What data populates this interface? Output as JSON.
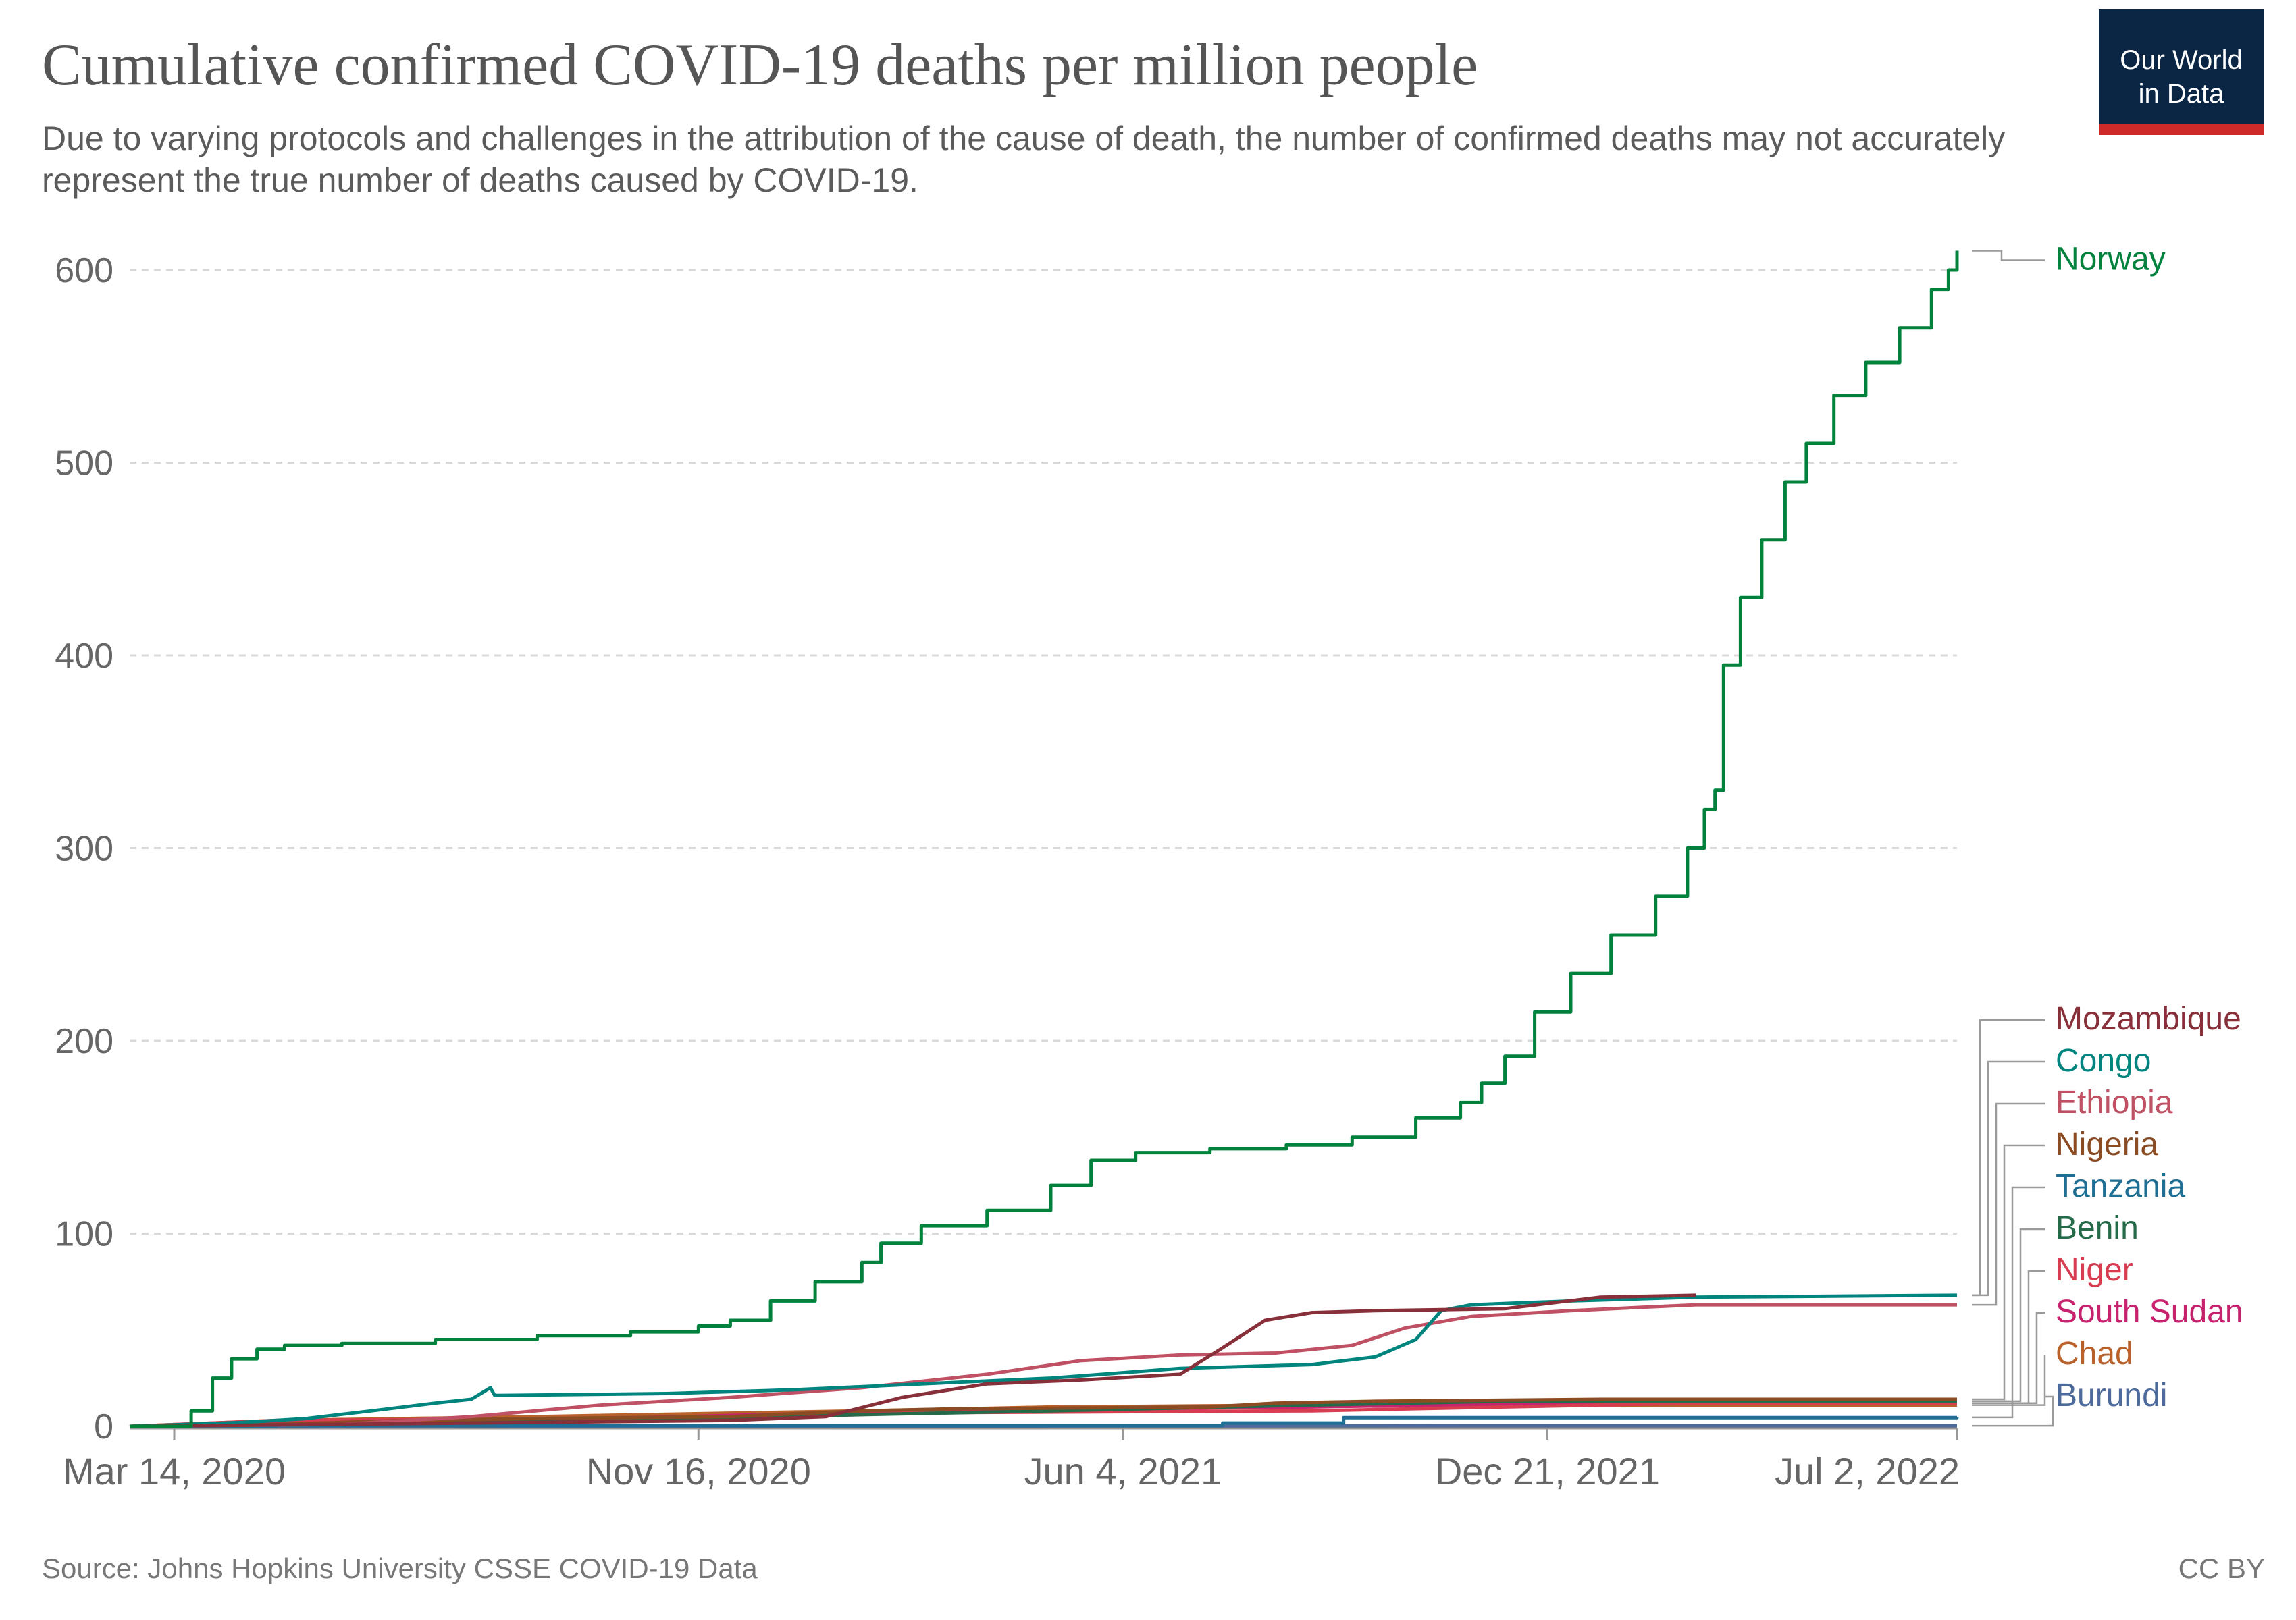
{
  "header": {
    "title": "Cumulative confirmed COVID-19 deaths per million people",
    "subtitle": "Due to varying protocols and challenges in the attribution of the cause of death, the number of confirmed deaths may not accurately represent the true number of deaths caused by COVID-19."
  },
  "logo": {
    "text": "Our World in Data",
    "bg_color": "#0b2545",
    "accent_color": "#cf2a2a"
  },
  "footer": {
    "source": "Source: Johns Hopkins University CSSE COVID-19 Data",
    "license": "CC BY"
  },
  "chart_data": {
    "type": "line",
    "title": "Cumulative confirmed COVID-19 deaths per million people",
    "xlabel": "",
    "ylabel": "",
    "x_type": "date",
    "x_range": [
      "2020-02-22",
      "2022-07-02"
    ],
    "ylim": [
      0,
      600
    ],
    "yticks": [
      0,
      100,
      200,
      300,
      400,
      500,
      600
    ],
    "xticks": [
      {
        "date": "2020-03-14",
        "label": "Mar 14, 2020"
      },
      {
        "date": "2020-11-16",
        "label": "Nov 16, 2020"
      },
      {
        "date": "2021-06-04",
        "label": "Jun 4, 2021"
      },
      {
        "date": "2021-12-21",
        "label": "Dec 21, 2021"
      },
      {
        "date": "2022-07-02",
        "label": "Jul 2, 2022"
      }
    ],
    "grid": "horizontal dashed",
    "legend": "right, labels at line ends",
    "series": [
      {
        "name": "Norway",
        "color": "#00813c",
        "step": true,
        "points": [
          [
            "2020-02-22",
            0
          ],
          [
            "2020-03-10",
            0
          ],
          [
            "2020-03-22",
            8
          ],
          [
            "2020-04-01",
            25
          ],
          [
            "2020-04-10",
            35
          ],
          [
            "2020-04-22",
            40
          ],
          [
            "2020-05-05",
            42
          ],
          [
            "2020-06-01",
            43
          ],
          [
            "2020-07-15",
            45
          ],
          [
            "2020-09-01",
            47
          ],
          [
            "2020-10-15",
            49
          ],
          [
            "2020-11-16",
            52
          ],
          [
            "2020-12-01",
            55
          ],
          [
            "2020-12-20",
            65
          ],
          [
            "2021-01-10",
            75
          ],
          [
            "2021-02-01",
            85
          ],
          [
            "2021-02-10",
            95
          ],
          [
            "2021-03-01",
            104
          ],
          [
            "2021-04-01",
            112
          ],
          [
            "2021-05-01",
            125
          ],
          [
            "2021-05-20",
            138
          ],
          [
            "2021-06-10",
            142
          ],
          [
            "2021-07-15",
            144
          ],
          [
            "2021-08-20",
            146
          ],
          [
            "2021-09-20",
            150
          ],
          [
            "2021-10-20",
            160
          ],
          [
            "2021-11-10",
            168
          ],
          [
            "2021-11-20",
            178
          ],
          [
            "2021-12-01",
            192
          ],
          [
            "2021-12-15",
            215
          ],
          [
            "2022-01-01",
            235
          ],
          [
            "2022-01-20",
            255
          ],
          [
            "2022-02-10",
            275
          ],
          [
            "2022-02-25",
            300
          ],
          [
            "2022-03-05",
            320
          ],
          [
            "2022-03-10",
            330
          ],
          [
            "2022-03-14",
            395
          ],
          [
            "2022-03-22",
            430
          ],
          [
            "2022-04-01",
            460
          ],
          [
            "2022-04-12",
            490
          ],
          [
            "2022-04-22",
            510
          ],
          [
            "2022-05-05",
            535
          ],
          [
            "2022-05-20",
            552
          ],
          [
            "2022-06-05",
            570
          ],
          [
            "2022-06-20",
            590
          ],
          [
            "2022-06-28",
            600
          ],
          [
            "2022-07-02",
            610
          ]
        ]
      },
      {
        "name": "Mozambique",
        "color": "#883039",
        "step": false,
        "points": [
          [
            "2020-02-22",
            0
          ],
          [
            "2020-12-01",
            3
          ],
          [
            "2021-01-15",
            5
          ],
          [
            "2021-02-20",
            15
          ],
          [
            "2021-04-01",
            22
          ],
          [
            "2021-05-15",
            24
          ],
          [
            "2021-07-01",
            27
          ],
          [
            "2021-07-20",
            40
          ],
          [
            "2021-08-10",
            55
          ],
          [
            "2021-09-01",
            59
          ],
          [
            "2021-10-01",
            60
          ],
          [
            "2021-12-01",
            61
          ],
          [
            "2022-01-15",
            67
          ],
          [
            "2022-03-01",
            68
          ]
        ]
      },
      {
        "name": "Congo",
        "color": "#00847e",
        "step": false,
        "points": [
          [
            "2020-02-22",
            0
          ],
          [
            "2020-04-15",
            2
          ],
          [
            "2020-05-15",
            4
          ],
          [
            "2020-06-15",
            8
          ],
          [
            "2020-07-15",
            12
          ],
          [
            "2020-08-01",
            14
          ],
          [
            "2020-08-10",
            20
          ],
          [
            "2020-08-12",
            16
          ],
          [
            "2020-11-01",
            17
          ],
          [
            "2021-01-01",
            19
          ],
          [
            "2021-03-01",
            22
          ],
          [
            "2021-05-01",
            25
          ],
          [
            "2021-07-01",
            30
          ],
          [
            "2021-09-01",
            32
          ],
          [
            "2021-10-01",
            36
          ],
          [
            "2021-10-20",
            45
          ],
          [
            "2021-11-01",
            60
          ],
          [
            "2021-11-15",
            63
          ],
          [
            "2022-01-01",
            65
          ],
          [
            "2022-03-01",
            67
          ],
          [
            "2022-07-02",
            68
          ]
        ]
      },
      {
        "name": "Ethiopia",
        "color": "#c05063",
        "step": false,
        "points": [
          [
            "2020-02-22",
            0
          ],
          [
            "2020-06-01",
            1
          ],
          [
            "2020-08-01",
            5
          ],
          [
            "2020-10-01",
            11
          ],
          [
            "2020-12-01",
            15
          ],
          [
            "2021-02-01",
            20
          ],
          [
            "2021-04-01",
            27
          ],
          [
            "2021-05-15",
            34
          ],
          [
            "2021-07-01",
            37
          ],
          [
            "2021-08-15",
            38
          ],
          [
            "2021-09-20",
            42
          ],
          [
            "2021-10-15",
            51
          ],
          [
            "2021-11-15",
            57
          ],
          [
            "2022-01-01",
            60
          ],
          [
            "2022-03-01",
            63
          ],
          [
            "2022-07-02",
            63
          ]
        ]
      },
      {
        "name": "Nigeria",
        "color": "#8b4c23",
        "step": false,
        "points": [
          [
            "2020-02-22",
            0
          ],
          [
            "2020-05-01",
            1
          ],
          [
            "2020-07-01",
            3
          ],
          [
            "2020-09-01",
            4
          ],
          [
            "2020-12-01",
            5
          ],
          [
            "2021-02-01",
            8
          ],
          [
            "2021-03-15",
            9
          ],
          [
            "2021-07-15",
            10
          ],
          [
            "2021-08-15",
            12
          ],
          [
            "2021-10-01",
            13
          ],
          [
            "2022-01-15",
            14
          ],
          [
            "2022-07-02",
            14
          ]
        ]
      },
      {
        "name": "Tanzania",
        "color": "#1f6f94",
        "step": true,
        "points": [
          [
            "2020-02-22",
            0
          ],
          [
            "2020-05-01",
            0.4
          ],
          [
            "2021-07-20",
            0.4
          ],
          [
            "2021-07-21",
            1.7
          ],
          [
            "2021-09-15",
            1.7
          ],
          [
            "2021-09-16",
            4.5
          ],
          [
            "2022-07-02",
            4.6
          ]
        ]
      },
      {
        "name": "Benin",
        "color": "#256b4a",
        "step": false,
        "points": [
          [
            "2020-02-22",
            0
          ],
          [
            "2020-06-01",
            1
          ],
          [
            "2020-10-01",
            3
          ],
          [
            "2021-02-01",
            6
          ],
          [
            "2021-05-01",
            8
          ],
          [
            "2021-09-01",
            11
          ],
          [
            "2021-12-01",
            13
          ],
          [
            "2022-07-02",
            13
          ]
        ]
      },
      {
        "name": "Niger",
        "color": "#d73c50",
        "step": false,
        "points": [
          [
            "2020-02-22",
            0
          ],
          [
            "2020-05-01",
            3
          ],
          [
            "2020-10-01",
            4
          ],
          [
            "2021-01-01",
            5
          ],
          [
            "2021-03-01",
            7
          ],
          [
            "2021-09-01",
            8
          ],
          [
            "2021-12-01",
            10
          ],
          [
            "2022-03-01",
            12
          ],
          [
            "2022-07-02",
            12
          ]
        ]
      },
      {
        "name": "South Sudan",
        "color": "#c7226e",
        "step": false,
        "points": [
          [
            "2020-02-22",
            0
          ],
          [
            "2020-06-01",
            2
          ],
          [
            "2020-10-01",
            4
          ],
          [
            "2021-03-01",
            8
          ],
          [
            "2021-09-01",
            10
          ],
          [
            "2022-01-01",
            12
          ],
          [
            "2022-07-02",
            12
          ]
        ]
      },
      {
        "name": "Chad",
        "color": "#b8612a",
        "step": false,
        "points": [
          [
            "2020-02-22",
            0
          ],
          [
            "2020-05-01",
            3
          ],
          [
            "2020-09-01",
            5
          ],
          [
            "2021-02-01",
            8
          ],
          [
            "2021-05-01",
            10
          ],
          [
            "2021-09-01",
            11
          ],
          [
            "2022-01-01",
            11
          ],
          [
            "2022-07-02",
            11
          ]
        ]
      },
      {
        "name": "Burundi",
        "color": "#4c6a9c",
        "step": false,
        "points": [
          [
            "2020-02-22",
            0
          ],
          [
            "2021-06-01",
            0.2
          ],
          [
            "2022-01-01",
            0.3
          ],
          [
            "2022-07-02",
            0.3
          ]
        ]
      }
    ]
  }
}
